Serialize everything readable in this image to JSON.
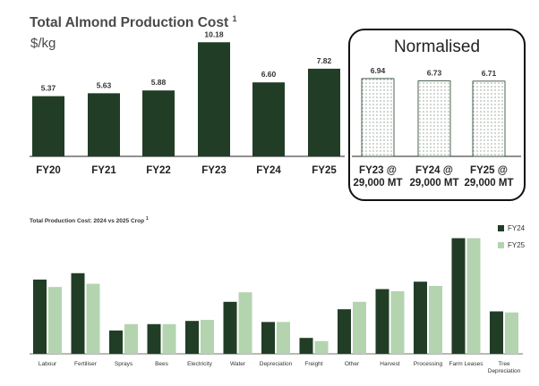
{
  "chart_data": [
    {
      "type": "bar",
      "title": "Total Almond Production Cost",
      "title_note": "1",
      "ylabel": "$/kg",
      "categories": [
        "FY20",
        "FY21",
        "FY22",
        "FY23",
        "FY24",
        "FY25"
      ],
      "values": [
        5.37,
        5.63,
        5.88,
        10.18,
        6.6,
        7.82
      ],
      "value_labels": [
        "5.37",
        "5.63",
        "5.88",
        "10.18",
        "6.60",
        "7.82"
      ],
      "ylim": [
        0,
        11
      ],
      "color": "#213d26",
      "normalised": {
        "label": "Normalised",
        "categories": [
          [
            "FY23 @",
            "29,000 MT"
          ],
          [
            "FY24 @",
            "29,000 MT"
          ],
          [
            "FY25 @",
            "29,000 MT"
          ]
        ],
        "values": [
          6.94,
          6.73,
          6.71
        ],
        "value_labels": [
          "6.94",
          "6.73",
          "6.71"
        ]
      }
    },
    {
      "type": "bar",
      "title": "Total Production Cost: 2024 vs 2025 Crop",
      "title_note": "1",
      "categories": [
        "Labour",
        "Fertiliser",
        "Sprays",
        "Bees",
        "Electricity",
        "Water",
        "Depreciation",
        "Freight",
        "Other",
        "Harvest",
        "Processing",
        "Farm Leases",
        "Tree Depreciation"
      ],
      "category_lines": [
        [
          "Labour"
        ],
        [
          "Fertiliser"
        ],
        [
          "Sprays"
        ],
        [
          "Bees"
        ],
        [
          "Electricity"
        ],
        [
          "Water"
        ],
        [
          "Depreciation"
        ],
        [
          "Freight"
        ],
        [
          "Other"
        ],
        [
          "Harvest"
        ],
        [
          "Processing"
        ],
        [
          "Farm Leases"
        ],
        [
          "Tree",
          "Depreciation"
        ]
      ],
      "series": [
        {
          "name": "FY24",
          "color": "#213d26",
          "values": [
            0.7,
            0.76,
            0.22,
            0.28,
            0.31,
            0.49,
            0.3,
            0.15,
            0.42,
            0.61,
            0.68,
            1.09,
            0.4
          ]
        },
        {
          "name": "FY25",
          "color": "#b3d4af",
          "values": [
            0.63,
            0.66,
            0.28,
            0.28,
            0.32,
            0.58,
            0.3,
            0.12,
            0.49,
            0.59,
            0.64,
            1.09,
            0.39
          ]
        }
      ],
      "ylim": [
        0,
        1.12
      ],
      "legend_position": "top-right"
    }
  ]
}
